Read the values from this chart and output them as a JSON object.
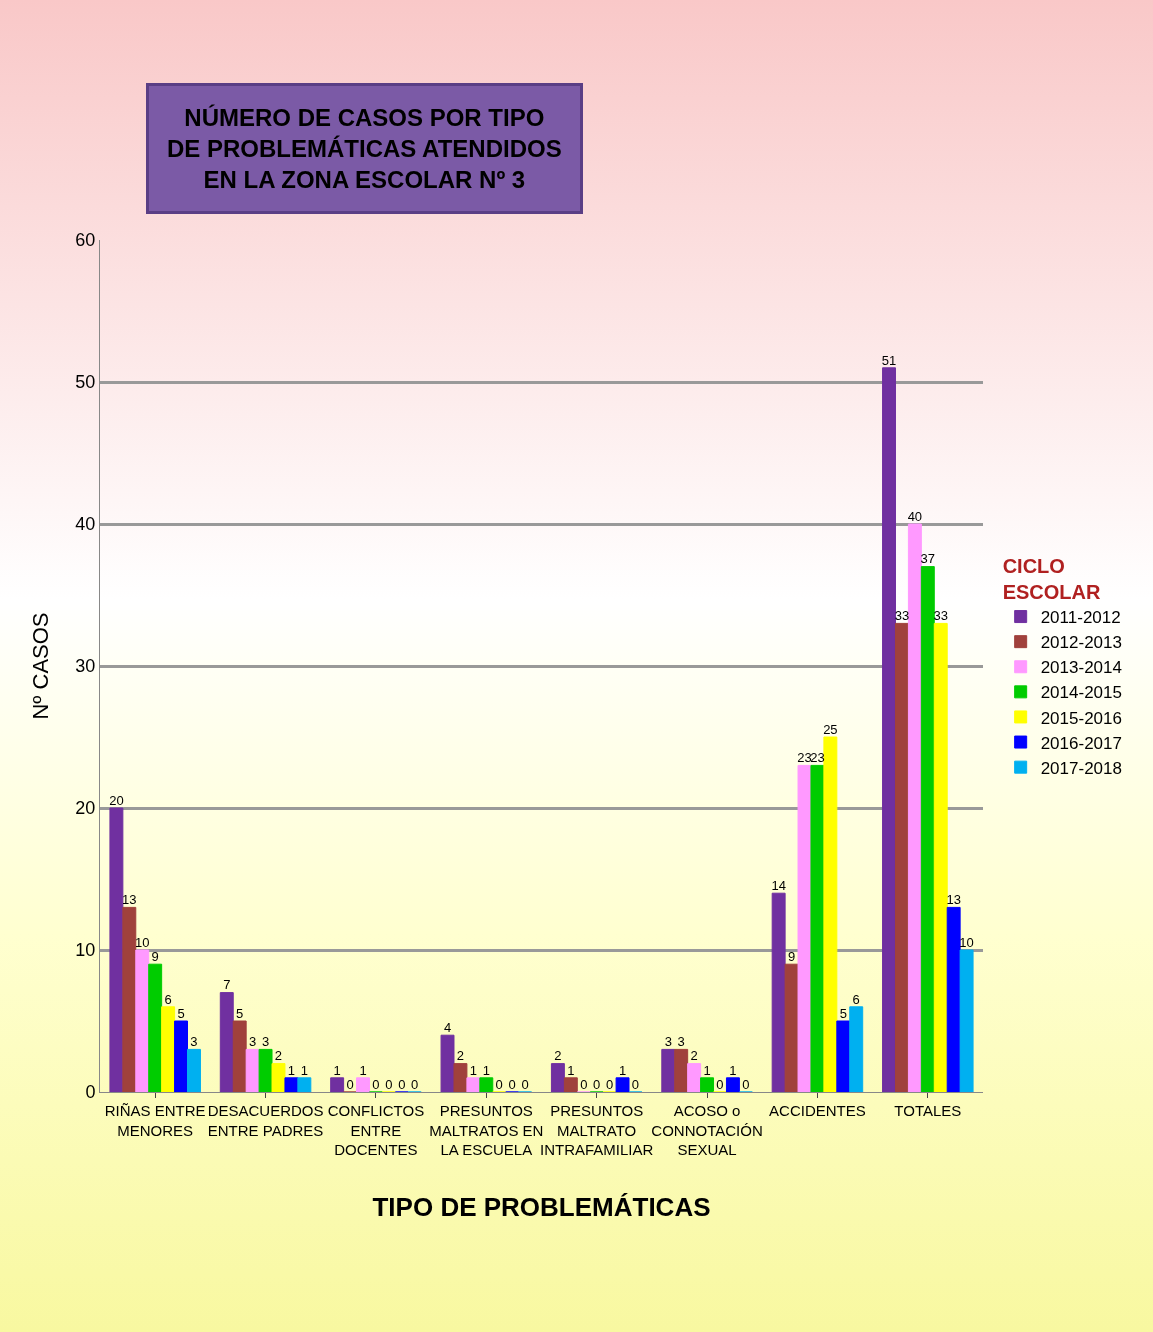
{
  "chart_data": {
    "type": "bar",
    "title": "NÚMERO DE CASOS POR TIPO DE PROBLEMÁTICAS ATENDIDOS EN LA ZONA ESCOLAR Nº 3",
    "xlabel": "TIPO DE PROBLEMÁTICAS",
    "ylabel": "Nº CASOS",
    "legend_title": "CICLO ESCOLAR",
    "categories": [
      "RIÑAS ENTRE MENORES",
      "DESACUERDOS ENTRE PADRES",
      "CONFLICTOS ENTRE DOCENTES",
      "PRESUNTOS MALTRATOS EN LA ESCUELA",
      "PRESUNTOS MALTRATO INTRAFAMILIAR",
      "ACOSO o CONNOTACIÓN SEXUAL",
      "ACCIDENTES",
      "TOTALES"
    ],
    "series": [
      {
        "name": "2011-2012",
        "color": "#7030a0",
        "values": [
          20,
          7,
          1,
          4,
          2,
          3,
          14,
          51
        ]
      },
      {
        "name": "2012-2013",
        "color": "#a0413c",
        "values": [
          13,
          5,
          0,
          2,
          1,
          3,
          9,
          33
        ]
      },
      {
        "name": "2013-2014",
        "color": "#ff99ff",
        "values": [
          10,
          3,
          1,
          1,
          0,
          2,
          23,
          40
        ]
      },
      {
        "name": "2014-2015",
        "color": "#00cc00",
        "values": [
          9,
          3,
          0,
          1,
          0,
          1,
          23,
          37
        ]
      },
      {
        "name": "2015-2016",
        "color": "#ffff00",
        "values": [
          6,
          2,
          0,
          0,
          0,
          0,
          25,
          33
        ]
      },
      {
        "name": "2016-2017",
        "color": "#0000ff",
        "values": [
          5,
          1,
          0,
          0,
          1,
          1,
          5,
          13
        ]
      },
      {
        "name": "2017-2018",
        "color": "#00b0f0",
        "values": [
          3,
          1,
          0,
          0,
          0,
          0,
          6,
          10
        ]
      }
    ],
    "ylim": [
      0,
      60
    ],
    "yticks": [
      0,
      10,
      20,
      30,
      40,
      50,
      60
    ],
    "grid": "y",
    "legend": "right",
    "data_labels": true
  }
}
